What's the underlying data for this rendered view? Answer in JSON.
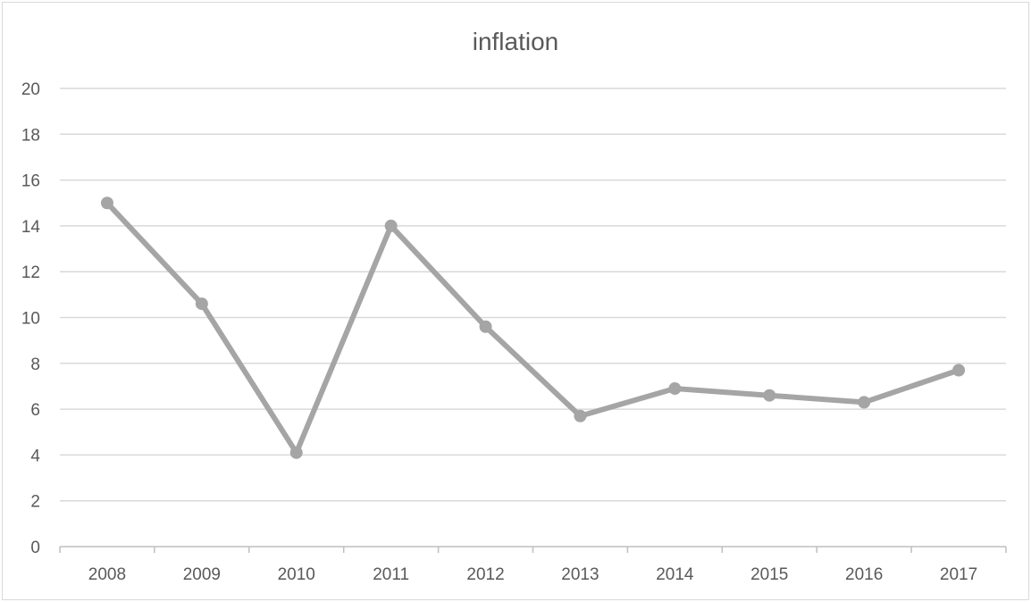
{
  "chart_data": {
    "type": "line",
    "title": "inflation",
    "xlabel": "",
    "ylabel": "",
    "categories": [
      "2008",
      "2009",
      "2010",
      "2011",
      "2012",
      "2013",
      "2014",
      "2015",
      "2016",
      "2017"
    ],
    "series": [
      {
        "values": [
          15.0,
          10.6,
          4.1,
          14.0,
          9.6,
          5.7,
          6.9,
          6.6,
          6.3,
          7.7
        ],
        "color": "#a5a5a5"
      }
    ],
    "ylim": [
      0,
      20
    ],
    "yticks": [
      "0",
      "2",
      "4",
      "6",
      "8",
      "10",
      "12",
      "14",
      "16",
      "18",
      "20"
    ],
    "grid": true,
    "legend": "none",
    "colors": {
      "gridline": "#d9d9d9",
      "axis": "#bfbfbf",
      "text": "#595959"
    }
  }
}
